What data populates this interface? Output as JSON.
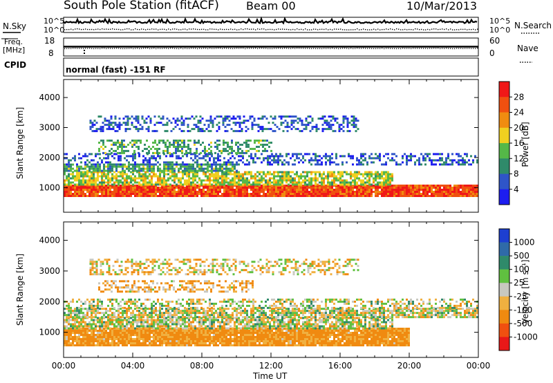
{
  "header": {
    "station": "South Pole Station (fitACF)",
    "beam": "Beam 00",
    "date": "10/Mar/2013"
  },
  "strip_labels": {
    "nsky": "N.Sky",
    "nsearch": "N.Search",
    "freq_line1": "Freq.",
    "freq_line2": "[MHz]",
    "nave": "Nave",
    "cpid": "CPID",
    "cpid_value": "normal (fast) -151 RF"
  },
  "chart_data": [
    {
      "type": "line",
      "panel": "noise",
      "left_ticks": [
        "10^5",
        "10^0"
      ],
      "right_ticks": [
        "10^5",
        "10^0"
      ],
      "series": [
        {
          "name": "N.Sky",
          "style": "solid"
        },
        {
          "name": "N.Search",
          "style": "dotted"
        }
      ]
    },
    {
      "type": "line",
      "panel": "frequency",
      "left_ticks": [
        "18",
        "8"
      ],
      "right_ticks": [
        "60",
        "0"
      ],
      "left_range": [
        8,
        18
      ],
      "right_range": [
        0,
        60
      ],
      "series": [
        {
          "name": "Freq.",
          "style": "solid"
        },
        {
          "name": "Nave",
          "style": "dotted"
        }
      ]
    },
    {
      "type": "heatmap",
      "panel": "power",
      "ylabel": "Slant Range [km]",
      "y_ticks": [
        "1000",
        "2000",
        "3000",
        "4000"
      ],
      "ylim": [
        180,
        4600
      ],
      "colorbar_label": "Power [dB]",
      "colorbar_ticks": [
        "4",
        "8",
        "12",
        "16",
        "20",
        "24",
        "28"
      ],
      "colorbar_colors": [
        "#1d1df0",
        "#2f55c8",
        "#2f8a6a",
        "#55b848",
        "#f0d020",
        "#f08c10",
        "#f05010",
        "#f01818"
      ],
      "bands": [
        {
          "range_km": [
            700,
            1100
          ],
          "hours": [
            0,
            24
          ],
          "power_db": 27
        },
        {
          "range_km": [
            1100,
            1550
          ],
          "hours": [
            0,
            19
          ],
          "power_db": 16
        },
        {
          "range_km": [
            1550,
            1800
          ],
          "hours": [
            0,
            10
          ],
          "power_db": 12
        },
        {
          "range_km": [
            1800,
            2150
          ],
          "hours": [
            0,
            24
          ],
          "power_db": 6
        },
        {
          "range_km": [
            2150,
            2600
          ],
          "hours": [
            2,
            12
          ],
          "power_db": 12
        },
        {
          "range_km": [
            2900,
            3400
          ],
          "hours": [
            1.5,
            17
          ],
          "power_db": 6
        }
      ]
    },
    {
      "type": "heatmap",
      "panel": "velocity",
      "ylabel": "Slant Range [km]",
      "y_ticks": [
        "1000",
        "2000",
        "3000",
        "4000"
      ],
      "ylim": [
        180,
        4600
      ],
      "colorbar_label": "Velocity [m s⁻¹]",
      "colorbar_ticks": [
        "1000",
        "500",
        "100",
        "25",
        "-25",
        "-100",
        "-500",
        "-1000"
      ],
      "colorbar_colors": [
        "#1d3fd0",
        "#2f6aa8",
        "#2f8a6a",
        "#60c040",
        "#c8c8c0",
        "#f0b040",
        "#f08a10",
        "#f05010",
        "#e81818"
      ],
      "bands": [
        {
          "range_km": [
            550,
            1150
          ],
          "hours": [
            0,
            20
          ],
          "velocity": -150
        },
        {
          "range_km": [
            1150,
            1500
          ],
          "hours": [
            0,
            19
          ],
          "velocity": 0
        },
        {
          "range_km": [
            1500,
            1800
          ],
          "hours": [
            0,
            24
          ],
          "velocity": 0
        },
        {
          "range_km": [
            1800,
            2100
          ],
          "hours": [
            0,
            24
          ],
          "velocity": 0
        },
        {
          "range_km": [
            2300,
            2700
          ],
          "hours": [
            2,
            11
          ],
          "velocity": -100
        },
        {
          "range_km": [
            2900,
            3400
          ],
          "hours": [
            1.5,
            17
          ],
          "velocity": -40
        }
      ]
    }
  ],
  "x_axis": {
    "label": "Time UT",
    "ticks": [
      "00:00",
      "04:00",
      "08:00",
      "12:00",
      "16:00",
      "20:00",
      "00:00"
    ],
    "range_hours": [
      0,
      24
    ]
  }
}
